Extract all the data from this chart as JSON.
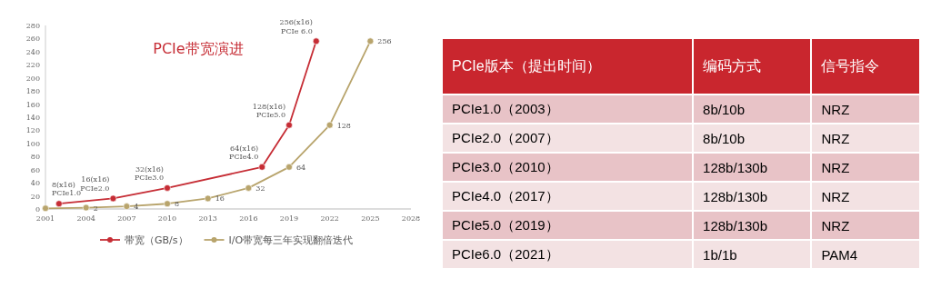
{
  "chart_data": [
    {
      "type": "line",
      "title": "PCIe带宽演进",
      "xlim": [
        2001,
        2028
      ],
      "xticks": [
        2001,
        2004,
        2007,
        2010,
        2013,
        2016,
        2019,
        2022,
        2025,
        2028
      ],
      "ylim": [
        0,
        280
      ],
      "yticks": [
        0,
        20,
        40,
        60,
        80,
        100,
        120,
        140,
        160,
        180,
        200,
        220,
        240,
        260,
        280
      ],
      "grid": false,
      "legend": "bottom",
      "marker": "circle",
      "series": [
        {
          "name": "带宽（GB/s）",
          "color": "#c62d35",
          "x": [
            2002,
            2006,
            2010,
            2017,
            2019,
            2021
          ],
          "values": [
            8,
            16,
            32,
            64,
            128,
            256
          ],
          "value_labels": [
            "8(x16)\nPCIe1.0",
            "16(x16)\nPCIe2.0",
            "32(x16)\nPCIe3.0",
            "64(x16)\nPCIe4.0",
            "128(x16)\nPCIe5.0",
            "256(x16)\nPCIe 6.0"
          ]
        },
        {
          "name": "I/O带宽每三年实现翻倍迭代",
          "color": "#b8a46c",
          "x": [
            2001,
            2004,
            2007,
            2010,
            2013,
            2016,
            2019,
            2022,
            2025
          ],
          "values": [
            1,
            2,
            4,
            8,
            16,
            32,
            64,
            128,
            256
          ],
          "value_labels": [
            null,
            "2",
            "4",
            "8",
            "16",
            "32",
            "64",
            "128",
            "256"
          ]
        }
      ]
    },
    {
      "type": "other",
      "categories": [
        "PCIe版本（提出时间）",
        "编码方式",
        "信号指令"
      ],
      "cell_labels": [
        [
          "PCIe1.0（2003）",
          "8b/10b",
          "NRZ"
        ],
        [
          "PCIe2.0（2007）",
          "8b/10b",
          "NRZ"
        ],
        [
          "PCIe3.0（2010）",
          "128b/130b",
          "NRZ"
        ],
        [
          "PCIe4.0（2017）",
          "128b/130b",
          "NRZ"
        ],
        [
          "PCIe5.0（2019）",
          "128b/130b",
          "NRZ"
        ],
        [
          "PCIe6.0（2021）",
          "1b/1b",
          "PAM4"
        ]
      ]
    }
  ]
}
